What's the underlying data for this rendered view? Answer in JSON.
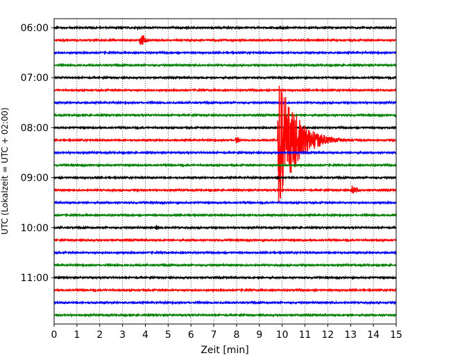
{
  "chart_data": {
    "type": "line",
    "title": "",
    "xlabel": "Zeit  [min]",
    "ylabel": "UTC (Lokalzeit = UTC + 02:00)",
    "xlim": [
      0,
      15
    ],
    "x_ticks": [
      "0",
      "1",
      "2",
      "3",
      "4",
      "5",
      "6",
      "7",
      "8",
      "9",
      "10",
      "11",
      "12",
      "13",
      "14",
      "15"
    ],
    "y_tick_labels": [
      "06:00",
      "07:00",
      "08:00",
      "09:00",
      "10:00",
      "11:00"
    ],
    "trace_interval_minutes": 15,
    "first_trace": "06:00",
    "trace_count": 24,
    "trace_colors": [
      "#000000",
      "#ff0000",
      "#0000ff",
      "#008000"
    ],
    "grid": "vertical dotted at each minute",
    "events": [
      {
        "trace": "06:15",
        "minute": 3.8,
        "amplitude": 0.9,
        "duration": 0.6
      },
      {
        "trace": "08:15",
        "minute": 8.0,
        "amplitude": 0.5,
        "duration": 0.4
      },
      {
        "trace": "09:15",
        "minute": 13.1,
        "amplitude": 0.7,
        "duration": 0.6
      },
      {
        "trace": "09:00",
        "minute": 9.75,
        "amplitude": 0.4,
        "duration": 0.2
      },
      {
        "trace": "10:00",
        "minute": 4.5,
        "amplitude": 0.35,
        "duration": 0.3
      },
      {
        "trace": "08:15",
        "minute": 9.85,
        "amplitude": 11.0,
        "duration": 3.4,
        "type": "quake"
      }
    ]
  }
}
